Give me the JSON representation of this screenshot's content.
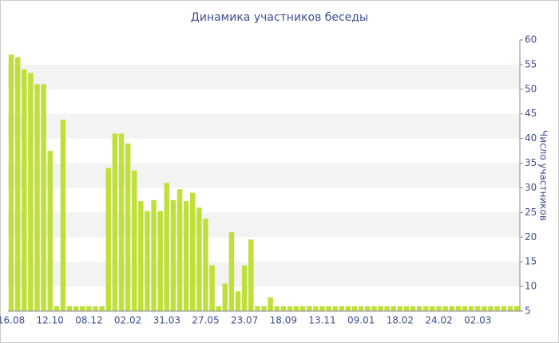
{
  "chart_data": {
    "type": "bar",
    "title": "Динамика участников беседы",
    "y_label": "Число участников",
    "categories": [
      "16.08",
      null,
      null,
      null,
      null,
      null,
      "12.10",
      null,
      null,
      null,
      null,
      null,
      "08.12",
      null,
      null,
      null,
      null,
      null,
      "02.02",
      null,
      null,
      null,
      null,
      null,
      "31.03",
      null,
      null,
      null,
      null,
      null,
      "27.05",
      null,
      null,
      null,
      null,
      null,
      "23.07",
      null,
      null,
      null,
      null,
      null,
      "18.09",
      null,
      null,
      null,
      null,
      null,
      "13.11",
      null,
      null,
      null,
      null,
      null,
      "09.01",
      null,
      null,
      null,
      null,
      null,
      "18.02",
      null,
      null,
      null,
      null,
      null,
      "24.02",
      null,
      null,
      null,
      null,
      null,
      "02.03",
      null,
      null,
      null,
      null,
      null,
      null
    ],
    "values": [
      57,
      56.5,
      54,
      53.3,
      51,
      51,
      37.5,
      6,
      43.8,
      6,
      6,
      6,
      6,
      6,
      6,
      34,
      41,
      41,
      39,
      33.5,
      27.3,
      25.3,
      27.5,
      25.3,
      31,
      27.5,
      29.7,
      27.3,
      29,
      26,
      23.7,
      14.3,
      6,
      10.6,
      21,
      9,
      14.3,
      19.5,
      6,
      6,
      7.8,
      6,
      6,
      6,
      6,
      6,
      6,
      6,
      6,
      6,
      6,
      6,
      6,
      6,
      6,
      6,
      6,
      6,
      6,
      6,
      6,
      6,
      6,
      6,
      6,
      6,
      6,
      6,
      6,
      6,
      6,
      6,
      6,
      6,
      6,
      6,
      6,
      6,
      6
    ],
    "color": "#bfe03a",
    "ylim": [
      5,
      60
    ],
    "yticks": [
      5,
      10,
      15,
      20,
      25,
      30,
      35,
      40,
      45,
      50,
      55,
      60
    ],
    "grid": true
  }
}
